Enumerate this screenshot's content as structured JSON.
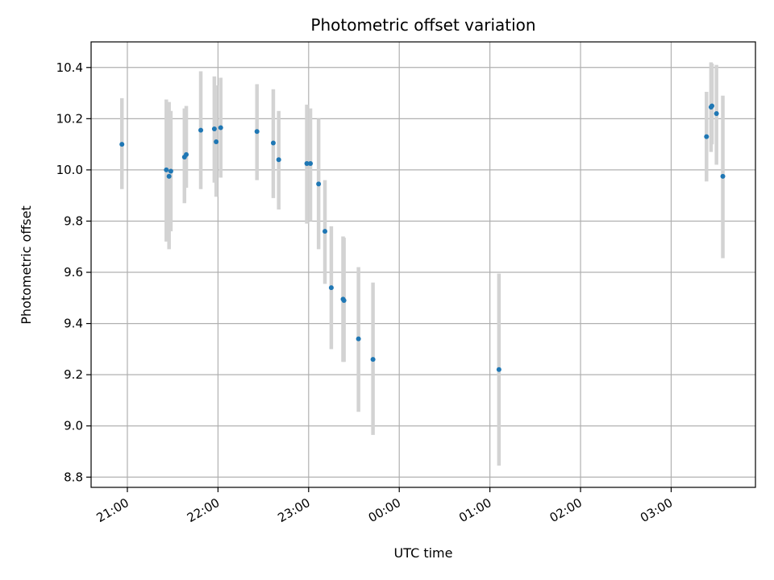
{
  "chart_data": {
    "type": "scatter",
    "title": "Photometric offset variation",
    "xlabel": "UTC time",
    "ylabel": "Photometric offset",
    "x_unit": "hours (UTC, continuing past midnight)",
    "xlim": [
      20.6,
      27.93
    ],
    "ylim": [
      8.76,
      10.5
    ],
    "grid": true,
    "x_ticks": [
      {
        "value": 21,
        "label": "21:00"
      },
      {
        "value": 22,
        "label": "22:00"
      },
      {
        "value": 23,
        "label": "23:00"
      },
      {
        "value": 24,
        "label": "00:00"
      },
      {
        "value": 25,
        "label": "01:00"
      },
      {
        "value": 26,
        "label": "02:00"
      },
      {
        "value": 27,
        "label": "03:00"
      }
    ],
    "y_ticks": [
      {
        "value": 8.8,
        "label": "8.8"
      },
      {
        "value": 9.0,
        "label": "9.0"
      },
      {
        "value": 9.2,
        "label": "9.2"
      },
      {
        "value": 9.4,
        "label": "9.4"
      },
      {
        "value": 9.6,
        "label": "9.6"
      },
      {
        "value": 9.8,
        "label": "9.8"
      },
      {
        "value": 10.0,
        "label": "10.0"
      },
      {
        "value": 10.2,
        "label": "10.2"
      },
      {
        "value": 10.4,
        "label": "10.4"
      }
    ],
    "point_color": "#1f77b4",
    "errorbar_color": "#d3d3d3",
    "points": [
      {
        "x": 20.94,
        "y": 10.1,
        "err_low": 9.925,
        "err_high": 10.28
      },
      {
        "x": 21.43,
        "y": 10.0,
        "err_low": 9.72,
        "err_high": 10.275
      },
      {
        "x": 21.46,
        "y": 9.975,
        "err_low": 9.69,
        "err_high": 10.265
      },
      {
        "x": 21.48,
        "y": 9.995,
        "err_low": 9.76,
        "err_high": 10.23
      },
      {
        "x": 21.63,
        "y": 10.05,
        "err_low": 9.87,
        "err_high": 10.24
      },
      {
        "x": 21.65,
        "y": 10.06,
        "err_low": 9.93,
        "err_high": 10.25
      },
      {
        "x": 21.81,
        "y": 10.155,
        "err_low": 9.925,
        "err_high": 10.385
      },
      {
        "x": 21.96,
        "y": 10.16,
        "err_low": 9.95,
        "err_high": 10.365
      },
      {
        "x": 21.98,
        "y": 10.11,
        "err_low": 9.895,
        "err_high": 10.33
      },
      {
        "x": 22.03,
        "y": 10.165,
        "err_low": 9.97,
        "err_high": 10.36
      },
      {
        "x": 22.43,
        "y": 10.15,
        "err_low": 9.96,
        "err_high": 10.335
      },
      {
        "x": 22.61,
        "y": 10.105,
        "err_low": 9.89,
        "err_high": 10.315
      },
      {
        "x": 22.67,
        "y": 10.04,
        "err_low": 9.845,
        "err_high": 10.23
      },
      {
        "x": 22.98,
        "y": 10.025,
        "err_low": 9.79,
        "err_high": 10.255
      },
      {
        "x": 23.02,
        "y": 10.025,
        "err_low": 9.8,
        "err_high": 10.24
      },
      {
        "x": 23.11,
        "y": 9.945,
        "err_low": 9.69,
        "err_high": 10.2
      },
      {
        "x": 23.18,
        "y": 9.76,
        "err_low": 9.555,
        "err_high": 9.96
      },
      {
        "x": 23.25,
        "y": 9.54,
        "err_low": 9.3,
        "err_high": 9.78
      },
      {
        "x": 23.38,
        "y": 9.495,
        "err_low": 9.25,
        "err_high": 9.74
      },
      {
        "x": 23.39,
        "y": 9.49,
        "err_low": 9.25,
        "err_high": 9.735
      },
      {
        "x": 23.55,
        "y": 9.34,
        "err_low": 9.055,
        "err_high": 9.62
      },
      {
        "x": 23.71,
        "y": 9.26,
        "err_low": 8.965,
        "err_high": 9.56
      },
      {
        "x": 25.1,
        "y": 9.22,
        "err_low": 8.845,
        "err_high": 9.595
      },
      {
        "x": 27.39,
        "y": 10.13,
        "err_low": 9.955,
        "err_high": 10.305
      },
      {
        "x": 27.44,
        "y": 10.245,
        "err_low": 10.07,
        "err_high": 10.42
      },
      {
        "x": 27.45,
        "y": 10.25,
        "err_low": 10.1,
        "err_high": 10.415
      },
      {
        "x": 27.5,
        "y": 10.22,
        "err_low": 10.02,
        "err_high": 10.41
      },
      {
        "x": 27.57,
        "y": 9.975,
        "err_low": 9.655,
        "err_high": 10.29
      }
    ]
  }
}
